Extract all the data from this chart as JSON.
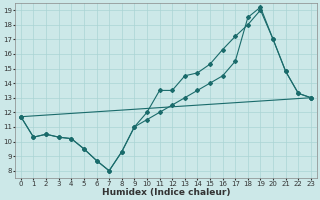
{
  "title": "",
  "xlabel": "Humidex (Indice chaleur)",
  "bg_color": "#cce8e8",
  "line_color": "#1a6b6b",
  "grid_color": "#aad4d4",
  "xlim": [
    -0.5,
    23.5
  ],
  "ylim": [
    7.5,
    19.5
  ],
  "yticks": [
    8,
    9,
    10,
    11,
    12,
    13,
    14,
    15,
    16,
    17,
    18,
    19
  ],
  "xticks": [
    0,
    1,
    2,
    3,
    4,
    5,
    6,
    7,
    8,
    9,
    10,
    11,
    12,
    13,
    14,
    15,
    16,
    17,
    18,
    19,
    20,
    21,
    22,
    23
  ],
  "line1_x": [
    0,
    1,
    2,
    3,
    4,
    5,
    6,
    7,
    8,
    9,
    10,
    11,
    12,
    13,
    14,
    15,
    16,
    17,
    18,
    19,
    20,
    21,
    22,
    23
  ],
  "line1_y": [
    11.7,
    10.3,
    10.5,
    10.3,
    10.2,
    9.5,
    8.7,
    8.0,
    9.3,
    11.0,
    12.0,
    13.5,
    13.5,
    14.5,
    14.7,
    15.3,
    16.3,
    17.2,
    18.0,
    19.0,
    17.0,
    14.8,
    13.3,
    13.0
  ],
  "line2_x": [
    0,
    1,
    2,
    3,
    4,
    5,
    6,
    7,
    8,
    9,
    10,
    11,
    12,
    13,
    14,
    15,
    16,
    17,
    18,
    19,
    20,
    21,
    22,
    23
  ],
  "line2_y": [
    11.7,
    10.3,
    10.5,
    10.3,
    10.2,
    9.5,
    8.7,
    8.0,
    9.3,
    11.0,
    11.5,
    12.0,
    12.5,
    13.0,
    13.5,
    14.0,
    14.5,
    15.5,
    18.5,
    19.2,
    17.0,
    14.8,
    13.3,
    13.0
  ],
  "line3_x": [
    0,
    23
  ],
  "line3_y": [
    11.7,
    13.0
  ],
  "marker": "D",
  "markersize": 2.0,
  "linewidth": 0.8,
  "tick_fontsize": 5.0,
  "xlabel_fontsize": 6.5
}
